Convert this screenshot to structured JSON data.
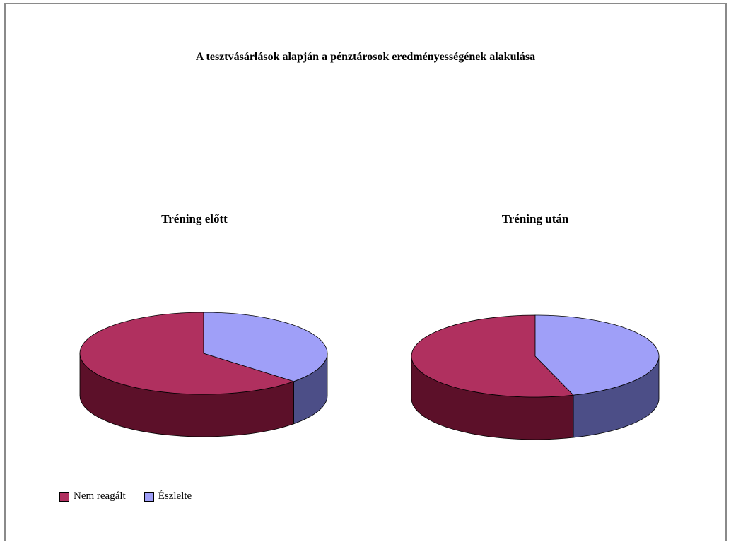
{
  "chart_data": {
    "type": "pie",
    "title": "A tesztvásárlások alapján a pénztárosok eredményességének alakulása",
    "charts": [
      {
        "title": "Tréning előtt",
        "values": [
          63,
          37
        ]
      },
      {
        "title": "Tréning után",
        "values": [
          55,
          45
        ]
      }
    ],
    "categories": [
      "Nem reagált",
      "Észlelte"
    ],
    "colors": {
      "Nem reagált": {
        "top": "#b0305f",
        "side": "#5c1029"
      },
      "Észlelte": {
        "top": "#9f9ff8",
        "side": "#4c4e87"
      }
    },
    "legend_position": "bottom-left"
  }
}
